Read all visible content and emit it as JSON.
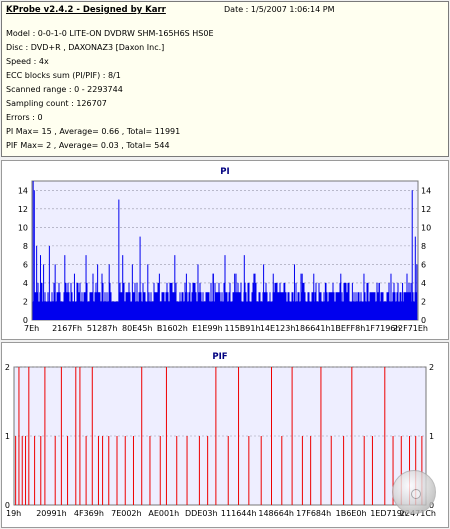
{
  "info": {
    "app_title": "KProbe v2.4.2 - Designed by Karr",
    "date": "Date : 1/5/2007 1:06:14 PM",
    "lines": [
      "Model : 0-0-1-0 LITE-ON DVDRW SHM-165H6S HS0E",
      "Disc : DVD+R , DAXONAZ3 [Daxon Inc.]",
      "Speed : 4x",
      "ECC blocks sum (PI/PIF) : 8/1",
      "Scanned range : 0 - 2293744",
      "Sampling count : 126707",
      "Errors : 0",
      "PI Max= 15 , Average= 0.66 , Total= 11991",
      "PIF Max= 2 , Average= 0.03 , Total= 544"
    ]
  },
  "chart_data": [
    {
      "type": "bar",
      "title": "PI",
      "xlabel": "",
      "ylabel": "",
      "x_tick_labels": [
        "7Eh",
        "2167Fh",
        "51287h",
        "80E45h",
        "B1602h",
        "E1E99h",
        "115B91h",
        "14E123h",
        "186641h",
        "1BEFF8h",
        "1F7196h",
        "22F71Eh"
      ],
      "y_ticks": [
        0,
        2,
        4,
        6,
        8,
        10,
        12,
        14
      ],
      "ylim": [
        0,
        15
      ],
      "grid": true,
      "colors": {
        "bar": "#0000ee",
        "background": "#eeeeff",
        "grid": "#9999aa"
      },
      "typical_level": 2,
      "spikes": [
        {
          "x": 0.003,
          "y": 15
        },
        {
          "x": 0.006,
          "y": 14
        },
        {
          "x": 0.012,
          "y": 8
        },
        {
          "x": 0.022,
          "y": 7
        },
        {
          "x": 0.03,
          "y": 6
        },
        {
          "x": 0.045,
          "y": 8
        },
        {
          "x": 0.06,
          "y": 6
        },
        {
          "x": 0.085,
          "y": 7
        },
        {
          "x": 0.11,
          "y": 5
        },
        {
          "x": 0.14,
          "y": 7
        },
        {
          "x": 0.17,
          "y": 6
        },
        {
          "x": 0.2,
          "y": 6
        },
        {
          "x": 0.225,
          "y": 13
        },
        {
          "x": 0.235,
          "y": 7
        },
        {
          "x": 0.26,
          "y": 6
        },
        {
          "x": 0.28,
          "y": 9
        },
        {
          "x": 0.3,
          "y": 6
        },
        {
          "x": 0.33,
          "y": 5
        },
        {
          "x": 0.37,
          "y": 7
        },
        {
          "x": 0.4,
          "y": 5
        },
        {
          "x": 0.43,
          "y": 6
        },
        {
          "x": 0.47,
          "y": 5
        },
        {
          "x": 0.5,
          "y": 7
        },
        {
          "x": 0.525,
          "y": 5
        },
        {
          "x": 0.55,
          "y": 7
        },
        {
          "x": 0.575,
          "y": 5
        },
        {
          "x": 0.6,
          "y": 6
        },
        {
          "x": 0.625,
          "y": 5
        },
        {
          "x": 0.655,
          "y": 4
        },
        {
          "x": 0.68,
          "y": 6
        },
        {
          "x": 0.7,
          "y": 5
        },
        {
          "x": 0.73,
          "y": 5
        },
        {
          "x": 0.76,
          "y": 4
        },
        {
          "x": 0.8,
          "y": 5
        },
        {
          "x": 0.83,
          "y": 4
        },
        {
          "x": 0.86,
          "y": 5
        },
        {
          "x": 0.9,
          "y": 4
        },
        {
          "x": 0.93,
          "y": 5
        },
        {
          "x": 0.96,
          "y": 4
        },
        {
          "x": 0.985,
          "y": 14
        },
        {
          "x": 0.993,
          "y": 9
        },
        {
          "x": 0.997,
          "y": 6
        }
      ]
    },
    {
      "type": "bar",
      "title": "PIF",
      "xlabel": "",
      "ylabel": "",
      "x_tick_labels": [
        "19h",
        "20991h",
        "4F369h",
        "7E002h",
        "AE001h",
        "DDE03h",
        "111644h",
        "148664h",
        "17F684h",
        "1B6E0h",
        "1ED719h",
        "22471Ch"
      ],
      "y_ticks": [
        0,
        1,
        2
      ],
      "ylim": [
        0,
        2
      ],
      "grid": true,
      "colors": {
        "bar": "#ee0000",
        "background": "#eeeeff",
        "grid": "#9999aa"
      },
      "values_x": [
        0.004,
        0.012,
        0.02,
        0.028,
        0.036,
        0.05,
        0.065,
        0.075,
        0.1,
        0.115,
        0.13,
        0.15,
        0.16,
        0.175,
        0.19,
        0.205,
        0.215,
        0.23,
        0.25,
        0.27,
        0.29,
        0.31,
        0.33,
        0.355,
        0.37,
        0.395,
        0.42,
        0.45,
        0.47,
        0.49,
        0.52,
        0.545,
        0.57,
        0.6,
        0.625,
        0.65,
        0.675,
        0.7,
        0.72,
        0.745,
        0.77,
        0.8,
        0.82,
        0.85,
        0.87,
        0.9,
        0.92,
        0.94,
        0.96,
        0.975,
        0.99
      ],
      "values_y": [
        1,
        2,
        1,
        1,
        2,
        1,
        1,
        2,
        1,
        2,
        1,
        2,
        2,
        1,
        2,
        1,
        1,
        1,
        1,
        1,
        1,
        2,
        1,
        1,
        2,
        1,
        1,
        1,
        1,
        2,
        1,
        2,
        1,
        1,
        2,
        1,
        2,
        1,
        1,
        2,
        1,
        1,
        2,
        1,
        1,
        2,
        1,
        1,
        1,
        1,
        1
      ]
    }
  ]
}
